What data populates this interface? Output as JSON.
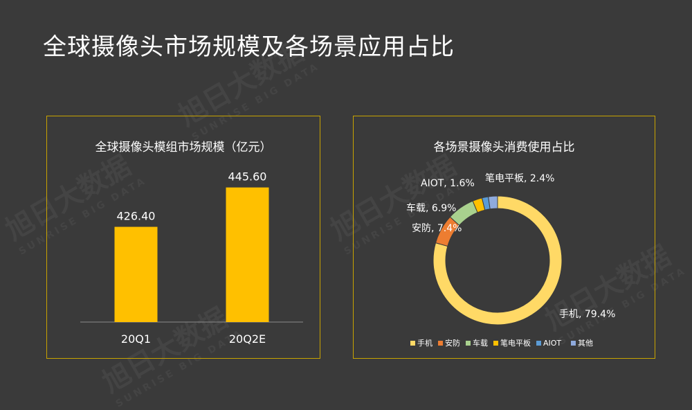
{
  "page": {
    "title": "全球摄像头市场规模及各场景应用占比"
  },
  "watermark": {
    "text": "旭日大数据",
    "subtext": "SUNRISE BIG DATA"
  },
  "colors": {
    "background": "#3a3a3a",
    "panel_border": "#c9a400",
    "bar": "#ffc000",
    "axis": "#8c8c8c"
  },
  "chart_data": [
    {
      "type": "bar",
      "title": "全球摄像头模组市场规模（亿元）",
      "categories": [
        "20Q1",
        "20Q2E"
      ],
      "values": [
        426.4,
        445.6
      ],
      "value_labels": [
        "426.40",
        "445.60"
      ],
      "ylim": [
        380,
        460
      ],
      "grid": false
    },
    {
      "type": "pie",
      "variant": "donut",
      "title": "各场景摄像头消费使用占比",
      "slices": [
        {
          "name": "手机",
          "value": 79.4,
          "label": "手机, 79.4%",
          "color": "#ffd966"
        },
        {
          "name": "安防",
          "value": 7.4,
          "label": "安防, 7.4%",
          "color": "#ed7d31"
        },
        {
          "name": "车载",
          "value": 6.9,
          "label": "车载, 6.9%",
          "color": "#a9d18e"
        },
        {
          "name": "笔电平板",
          "value": 2.4,
          "label": "笔电平板, 2.4%",
          "color": "#ffc000"
        },
        {
          "name": "AIOT",
          "value": 1.6,
          "label": "AIOT, 1.6%",
          "color": "#5b9bd5"
        },
        {
          "name": "其他",
          "value": 2.3,
          "label": "",
          "color": "#8faadc"
        }
      ],
      "legend_position": "bottom"
    }
  ]
}
